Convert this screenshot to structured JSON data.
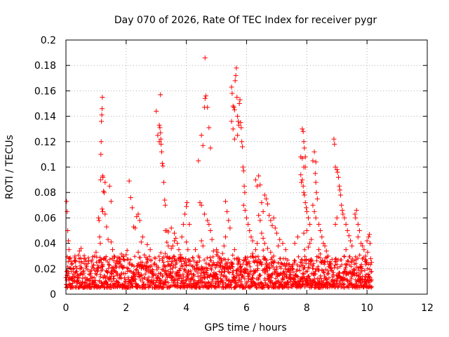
{
  "chart_data": {
    "type": "scatter",
    "title": "Day 070 of 2026, Rate Of TEC Index for receiver pygr",
    "xlabel": "GPS time / hours",
    "ylabel": "ROTI / TECUs",
    "xlim": [
      0,
      12
    ],
    "ylim": [
      0,
      0.2
    ],
    "x_ticks": [
      "0",
      "2",
      "4",
      "6",
      "8",
      "10",
      "12"
    ],
    "y_ticks": [
      "0",
      "0.02",
      "0.04",
      "0.06",
      "0.08",
      "0.1",
      "0.12",
      "0.14",
      "0.16",
      "0.18",
      "0.2"
    ],
    "grid": true,
    "marker": "plus",
    "color": "#ff0000",
    "data_extent_x": [
      0,
      10.15
    ],
    "background_band_y": [
      0.005,
      0.03
    ],
    "points": [
      [
        0.02,
        0.073
      ],
      [
        0.04,
        0.065
      ],
      [
        0.06,
        0.05
      ],
      [
        0.08,
        0.042
      ],
      [
        0.1,
        0.035
      ],
      [
        0.12,
        0.028
      ],
      [
        0.3,
        0.03
      ],
      [
        0.45,
        0.034
      ],
      [
        0.5,
        0.036
      ],
      [
        0.6,
        0.028
      ],
      [
        1.08,
        0.06
      ],
      [
        1.1,
        0.058
      ],
      [
        1.12,
        0.045
      ],
      [
        1.14,
        0.04
      ],
      [
        1.15,
        0.09
      ],
      [
        1.16,
        0.11
      ],
      [
        1.17,
        0.12
      ],
      [
        1.18,
        0.136
      ],
      [
        1.19,
        0.141
      ],
      [
        1.2,
        0.146
      ],
      [
        1.21,
        0.155
      ],
      [
        1.22,
        0.093
      ],
      [
        1.23,
        0.092
      ],
      [
        1.25,
        0.081
      ],
      [
        1.27,
        0.08
      ],
      [
        1.2,
        0.067
      ],
      [
        1.22,
        0.065
      ],
      [
        1.3,
        0.088
      ],
      [
        1.3,
        0.063
      ],
      [
        1.35,
        0.053
      ],
      [
        1.4,
        0.043
      ],
      [
        1.45,
        0.085
      ],
      [
        1.5,
        0.073
      ],
      [
        1.5,
        0.041
      ],
      [
        1.55,
        0.035
      ],
      [
        1.0,
        0.033
      ],
      [
        0.95,
        0.03
      ],
      [
        1.6,
        0.03
      ],
      [
        1.7,
        0.026
      ],
      [
        2.1,
        0.089
      ],
      [
        2.15,
        0.076
      ],
      [
        2.2,
        0.068
      ],
      [
        2.25,
        0.053
      ],
      [
        2.3,
        0.052
      ],
      [
        2.35,
        0.061
      ],
      [
        2.4,
        0.063
      ],
      [
        2.45,
        0.058
      ],
      [
        2.5,
        0.041
      ],
      [
        2.55,
        0.045
      ],
      [
        2.4,
        0.033
      ],
      [
        2.7,
        0.039
      ],
      [
        2.8,
        0.035
      ],
      [
        2.0,
        0.031
      ],
      [
        1.9,
        0.03
      ],
      [
        3.0,
        0.144
      ],
      [
        3.05,
        0.125
      ],
      [
        3.1,
        0.133
      ],
      [
        3.12,
        0.131
      ],
      [
        3.14,
        0.127
      ],
      [
        3.15,
        0.122
      ],
      [
        3.16,
        0.118
      ],
      [
        3.18,
        0.112
      ],
      [
        3.2,
        0.103
      ],
      [
        3.22,
        0.101
      ],
      [
        3.25,
        0.088
      ],
      [
        3.1,
        0.12
      ],
      [
        3.14,
        0.157
      ],
      [
        3.28,
        0.074
      ],
      [
        3.3,
        0.07
      ],
      [
        3.3,
        0.05
      ],
      [
        3.35,
        0.05
      ],
      [
        3.4,
        0.049
      ],
      [
        3.5,
        0.052
      ],
      [
        3.6,
        0.048
      ],
      [
        3.65,
        0.044
      ],
      [
        3.7,
        0.04
      ],
      [
        3.4,
        0.038
      ],
      [
        3.5,
        0.036
      ],
      [
        3.3,
        0.032
      ],
      [
        3.45,
        0.028
      ],
      [
        3.75,
        0.035
      ],
      [
        3.8,
        0.031
      ],
      [
        3.9,
        0.055
      ],
      [
        3.85,
        0.045
      ],
      [
        3.95,
        0.063
      ],
      [
        4.0,
        0.069
      ],
      [
        4.02,
        0.072
      ],
      [
        4.0,
        0.041
      ],
      [
        4.05,
        0.035
      ],
      [
        4.1,
        0.055
      ],
      [
        3.6,
        0.042
      ],
      [
        3.55,
        0.038
      ],
      [
        3.2,
        0.028
      ],
      [
        4.4,
        0.105
      ],
      [
        4.5,
        0.125
      ],
      [
        4.55,
        0.117
      ],
      [
        4.6,
        0.147
      ],
      [
        4.62,
        0.154
      ],
      [
        4.65,
        0.156
      ],
      [
        4.62,
        0.186
      ],
      [
        4.75,
        0.131
      ],
      [
        4.8,
        0.115
      ],
      [
        4.7,
        0.147
      ],
      [
        4.5,
        0.07
      ],
      [
        4.45,
        0.072
      ],
      [
        4.6,
        0.063
      ],
      [
        4.7,
        0.058
      ],
      [
        4.75,
        0.055
      ],
      [
        4.8,
        0.05
      ],
      [
        4.85,
        0.043
      ],
      [
        4.5,
        0.042
      ],
      [
        4.55,
        0.038
      ],
      [
        4.3,
        0.035
      ],
      [
        4.9,
        0.034
      ],
      [
        5.0,
        0.035
      ],
      [
        5.05,
        0.03
      ],
      [
        4.4,
        0.03
      ],
      [
        5.5,
        0.163
      ],
      [
        5.52,
        0.158
      ],
      [
        5.55,
        0.148
      ],
      [
        5.58,
        0.147
      ],
      [
        5.6,
        0.145
      ],
      [
        5.62,
        0.168
      ],
      [
        5.64,
        0.172
      ],
      [
        5.66,
        0.178
      ],
      [
        5.68,
        0.155
      ],
      [
        5.7,
        0.14
      ],
      [
        5.72,
        0.136
      ],
      [
        5.74,
        0.133
      ],
      [
        5.76,
        0.15
      ],
      [
        5.78,
        0.153
      ],
      [
        5.8,
        0.135
      ],
      [
        5.82,
        0.131
      ],
      [
        5.84,
        0.12
      ],
      [
        5.86,
        0.116
      ],
      [
        5.88,
        0.1
      ],
      [
        5.9,
        0.097
      ],
      [
        5.92,
        0.085
      ],
      [
        5.94,
        0.08
      ],
      [
        5.7,
        0.125
      ],
      [
        5.6,
        0.122
      ],
      [
        5.5,
        0.136
      ],
      [
        5.55,
        0.13
      ],
      [
        5.3,
        0.073
      ],
      [
        5.35,
        0.065
      ],
      [
        5.4,
        0.058
      ],
      [
        5.45,
        0.052
      ],
      [
        5.3,
        0.045
      ],
      [
        5.25,
        0.038
      ],
      [
        5.2,
        0.032
      ],
      [
        5.6,
        0.035
      ],
      [
        5.9,
        0.07
      ],
      [
        5.95,
        0.066
      ],
      [
        6.0,
        0.06
      ],
      [
        6.05,
        0.055
      ],
      [
        6.1,
        0.05
      ],
      [
        6.15,
        0.045
      ],
      [
        6.2,
        0.042
      ],
      [
        6.3,
        0.09
      ],
      [
        6.35,
        0.085
      ],
      [
        6.4,
        0.093
      ],
      [
        6.45,
        0.086
      ],
      [
        6.5,
        0.072
      ],
      [
        6.55,
        0.065
      ],
      [
        6.6,
        0.078
      ],
      [
        6.65,
        0.075
      ],
      [
        6.7,
        0.071
      ],
      [
        6.75,
        0.062
      ],
      [
        6.8,
        0.058
      ],
      [
        6.85,
        0.054
      ],
      [
        6.9,
        0.06
      ],
      [
        6.95,
        0.052
      ],
      [
        6.4,
        0.062
      ],
      [
        6.45,
        0.058
      ],
      [
        6.5,
        0.048
      ],
      [
        6.55,
        0.044
      ],
      [
        6.35,
        0.04
      ],
      [
        6.3,
        0.035
      ],
      [
        6.6,
        0.04
      ],
      [
        6.7,
        0.036
      ],
      [
        6.8,
        0.033
      ],
      [
        7.0,
        0.048
      ],
      [
        7.1,
        0.043
      ],
      [
        7.2,
        0.04
      ],
      [
        7.3,
        0.035
      ],
      [
        7.05,
        0.038
      ],
      [
        6.9,
        0.03
      ],
      [
        6.2,
        0.032
      ],
      [
        7.85,
        0.13
      ],
      [
        7.88,
        0.128
      ],
      [
        7.9,
        0.12
      ],
      [
        7.92,
        0.115
      ],
      [
        7.95,
        0.108
      ],
      [
        7.8,
        0.108
      ],
      [
        7.85,
        0.107
      ],
      [
        7.9,
        0.1
      ],
      [
        7.95,
        0.1
      ],
      [
        7.8,
        0.094
      ],
      [
        7.85,
        0.09
      ],
      [
        7.82,
        0.088
      ],
      [
        7.88,
        0.085
      ],
      [
        7.9,
        0.08
      ],
      [
        7.92,
        0.078
      ],
      [
        7.95,
        0.072
      ],
      [
        7.98,
        0.068
      ],
      [
        8.0,
        0.065
      ],
      [
        8.05,
        0.06
      ],
      [
        8.1,
        0.055
      ],
      [
        8.0,
        0.05
      ],
      [
        7.9,
        0.048
      ],
      [
        7.7,
        0.045
      ],
      [
        7.6,
        0.04
      ],
      [
        8.2,
        0.105
      ],
      [
        8.25,
        0.112
      ],
      [
        8.3,
        0.104
      ],
      [
        8.28,
        0.095
      ],
      [
        8.3,
        0.088
      ],
      [
        8.32,
        0.08
      ],
      [
        8.35,
        0.075
      ],
      [
        8.2,
        0.07
      ],
      [
        8.25,
        0.065
      ],
      [
        8.3,
        0.06
      ],
      [
        8.4,
        0.055
      ],
      [
        8.45,
        0.05
      ],
      [
        8.5,
        0.045
      ],
      [
        8.55,
        0.04
      ],
      [
        8.15,
        0.043
      ],
      [
        8.1,
        0.04
      ],
      [
        8.05,
        0.037
      ],
      [
        8.4,
        0.035
      ],
      [
        8.6,
        0.038
      ],
      [
        8.65,
        0.034
      ],
      [
        8.7,
        0.03
      ],
      [
        8.9,
        0.122
      ],
      [
        8.92,
        0.118
      ],
      [
        8.95,
        0.1
      ],
      [
        9.0,
        0.098
      ],
      [
        9.02,
        0.096
      ],
      [
        9.05,
        0.092
      ],
      [
        9.08,
        0.085
      ],
      [
        9.1,
        0.082
      ],
      [
        9.12,
        0.078
      ],
      [
        9.15,
        0.07
      ],
      [
        9.18,
        0.066
      ],
      [
        9.2,
        0.063
      ],
      [
        9.25,
        0.06
      ],
      [
        9.3,
        0.055
      ],
      [
        9.0,
        0.06
      ],
      [
        8.95,
        0.055
      ],
      [
        9.35,
        0.05
      ],
      [
        9.4,
        0.046
      ],
      [
        9.45,
        0.042
      ],
      [
        9.5,
        0.038
      ],
      [
        9.3,
        0.035
      ],
      [
        9.6,
        0.063
      ],
      [
        9.65,
        0.066
      ],
      [
        9.62,
        0.06
      ],
      [
        9.7,
        0.055
      ],
      [
        9.75,
        0.05
      ],
      [
        9.7,
        0.045
      ],
      [
        9.8,
        0.04
      ],
      [
        9.85,
        0.038
      ],
      [
        9.9,
        0.035
      ],
      [
        10.0,
        0.042
      ],
      [
        10.05,
        0.045
      ],
      [
        10.08,
        0.047
      ],
      [
        10.1,
        0.04
      ],
      [
        10.02,
        0.033
      ],
      [
        9.95,
        0.03
      ],
      [
        10.12,
        0.028
      ],
      [
        10.15,
        0.025
      ]
    ]
  }
}
